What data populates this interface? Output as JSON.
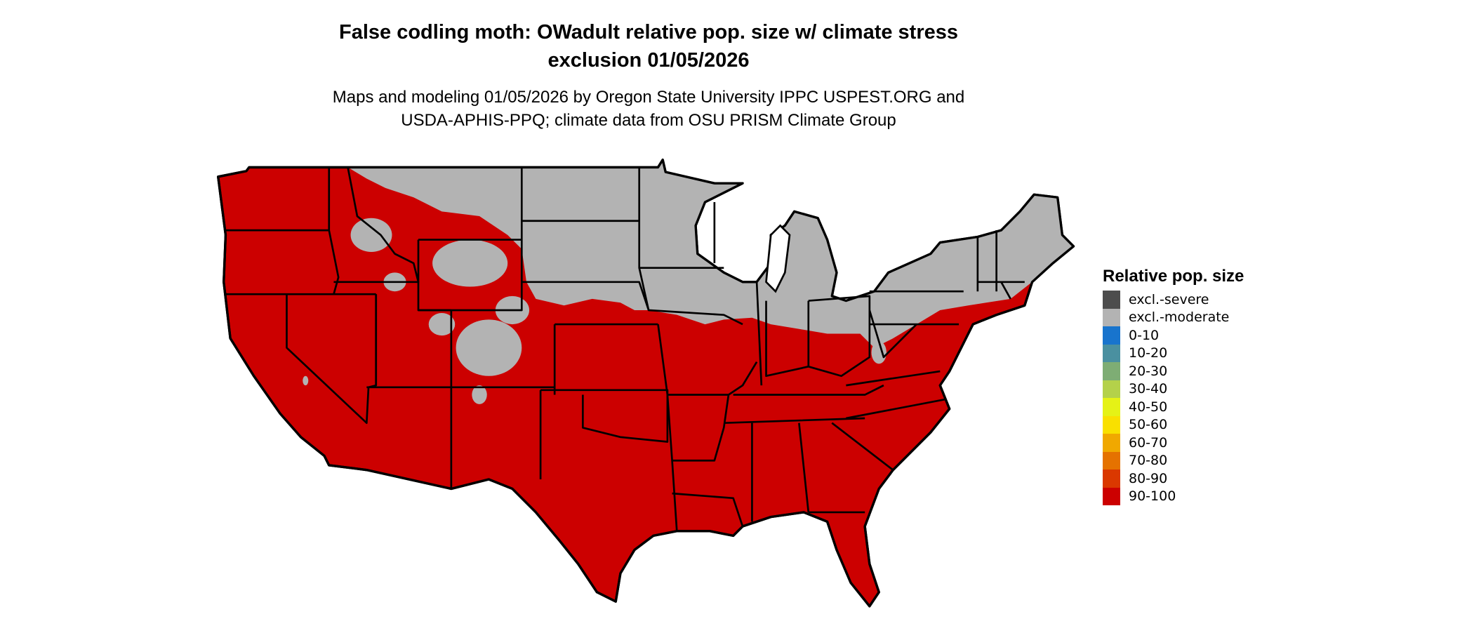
{
  "title_line1": "False codling moth: OWadult relative pop. size w/ climate stress",
  "title_line2": "exclusion 01/05/2026",
  "subtitle_line1": "Maps and modeling 01/05/2026 by Oregon State University IPPC USPEST.ORG and",
  "subtitle_line2": "USDA-APHIS-PPQ; climate data from OSU PRISM Climate Group",
  "map": {
    "region": "Contiguous United States",
    "dominant_class": "90-100",
    "secondary_class": "excl.-moderate"
  },
  "legend": {
    "title": "Relative pop. size",
    "items": [
      {
        "label": "excl.-severe",
        "color": "#4d4d4d"
      },
      {
        "label": "excl.-moderate",
        "color": "#b3b3b3"
      },
      {
        "label": "0-10",
        "color": "#1874cd"
      },
      {
        "label": "10-20",
        "color": "#4a90a0"
      },
      {
        "label": "20-30",
        "color": "#7ead74"
      },
      {
        "label": "30-40",
        "color": "#b4d14a"
      },
      {
        "label": "40-50",
        "color": "#e5f216"
      },
      {
        "label": "50-60",
        "color": "#f9e000"
      },
      {
        "label": "60-70",
        "color": "#f0a800"
      },
      {
        "label": "70-80",
        "color": "#e57200"
      },
      {
        "label": "80-90",
        "color": "#da3800"
      },
      {
        "label": "90-100",
        "color": "#cc0000"
      }
    ]
  }
}
